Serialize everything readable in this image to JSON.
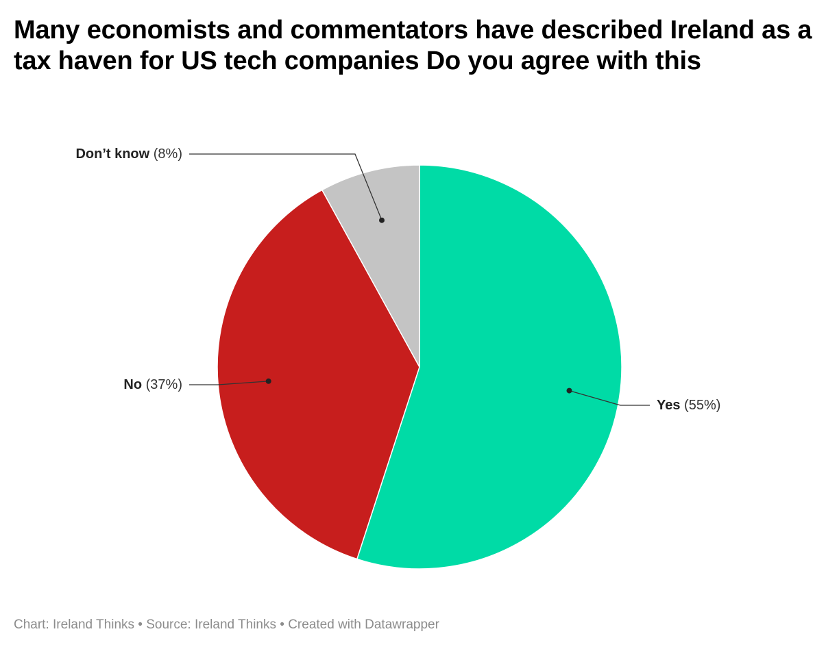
{
  "title": "Many economists and commentators have described Ireland as a tax haven for US tech companies Do you agree with this",
  "footer": {
    "chart_credit": "Chart: Ireland Thinks",
    "separator": " • ",
    "source": "Source: Ireland Thinks",
    "created_with": "Created with Datawrapper"
  },
  "chart_data": {
    "type": "pie",
    "title": "Many economists and commentators have described Ireland as a tax haven for US tech companies Do you agree with this",
    "start": "top",
    "direction": "clockwise",
    "slices": [
      {
        "label": "Yes",
        "value": 55,
        "value_label": "(55%)",
        "color": "#00dba6",
        "label_side": "right"
      },
      {
        "label": "No",
        "value": 37,
        "value_label": "(37%)",
        "color": "#c71e1d",
        "label_side": "left"
      },
      {
        "label": "Don’t know",
        "value": 8,
        "value_label": "(8%)",
        "color": "#c4c4c4",
        "label_side": "left"
      }
    ]
  }
}
